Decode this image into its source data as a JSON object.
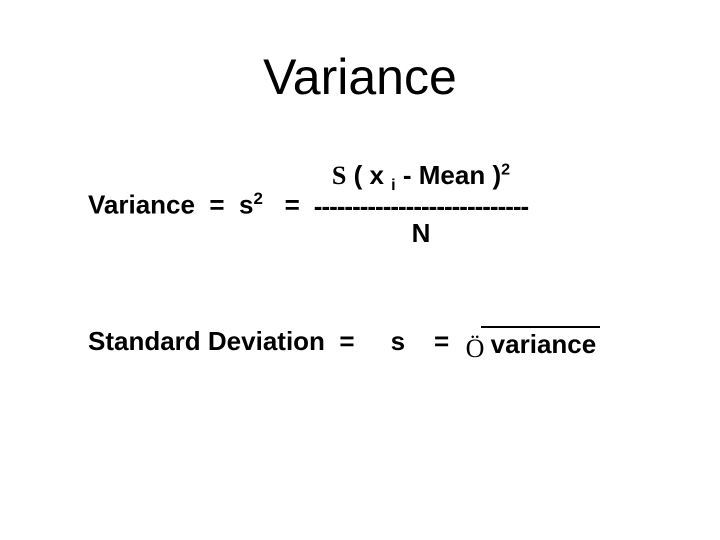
{
  "title": "Variance",
  "eq1": {
    "lhs_pre": "Variance  =  s",
    "lhs_sup": "2",
    "lhs_post": "   =",
    "numerator_sigma": "S",
    "numerator_pre": " ( x ",
    "numerator_sub": "i",
    "numerator_mid": " - Mean )",
    "numerator_sup": "2",
    "divider": "----------------------------",
    "denominator": "N"
  },
  "eq2": {
    "lhs": "Standard Deviation  =     s    =  ",
    "sqrt_symbol": "Ö",
    "sqrt_arg": " variance"
  },
  "style": {
    "bg": "#ffffff",
    "text": "#000000",
    "title_fontsize": 50,
    "body_fontsize": 26,
    "body_weight": "bold"
  }
}
